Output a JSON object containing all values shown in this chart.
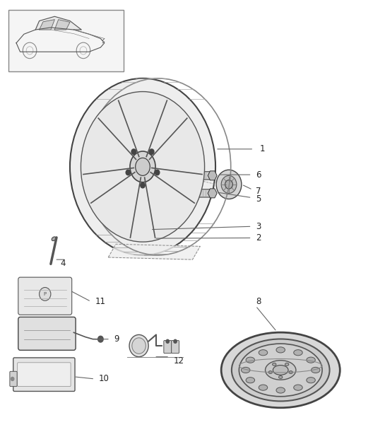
{
  "bg_color": "#ffffff",
  "line_color": "#333333",
  "light_gray": "#aaaaaa",
  "label_color": "#222222",
  "fig_width": 5.45,
  "fig_height": 6.28,
  "dpi": 100
}
